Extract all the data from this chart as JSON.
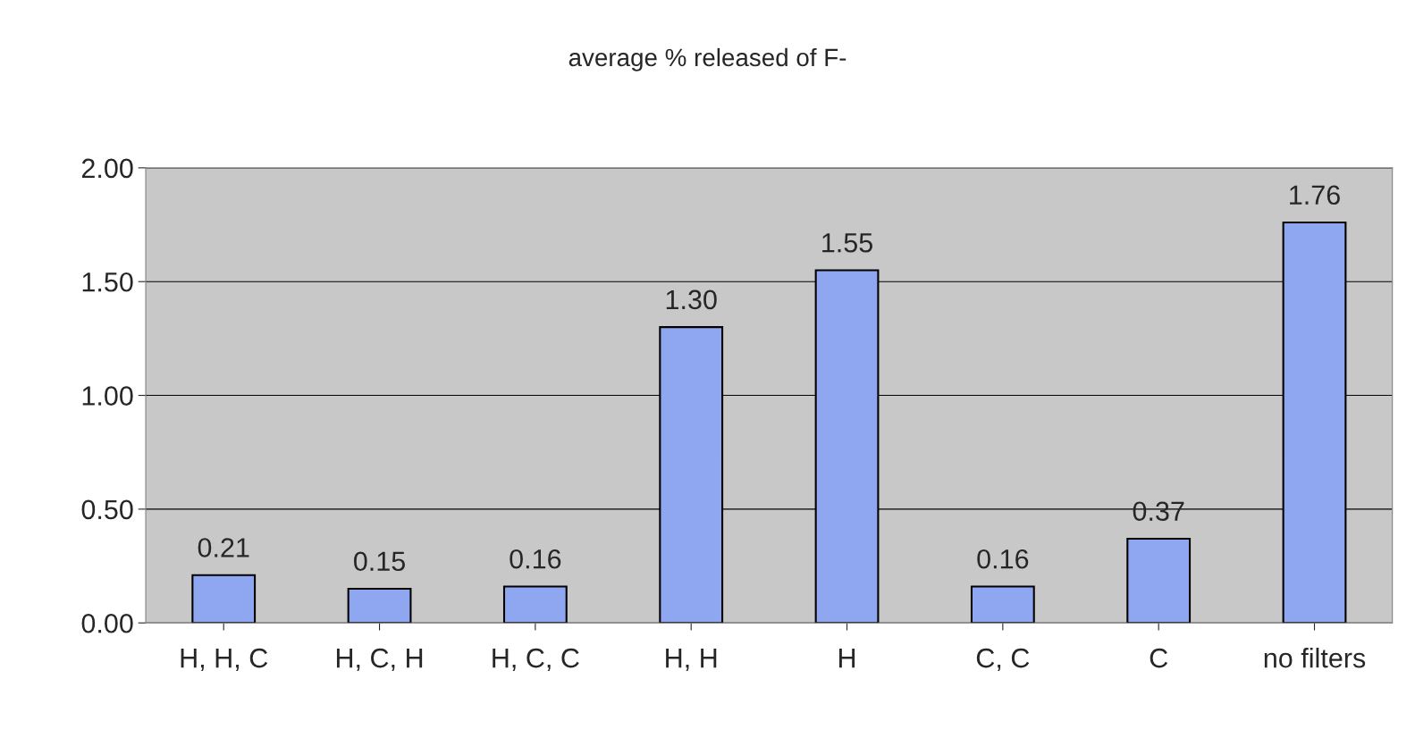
{
  "chart_data": {
    "type": "bar",
    "title": "average % released of F-",
    "categories": [
      "H, H, C",
      "H, C, H",
      "H, C, C",
      "H, H",
      "H",
      "C, C",
      "C",
      "no filters"
    ],
    "values": [
      0.21,
      0.15,
      0.16,
      1.3,
      1.55,
      0.16,
      0.37,
      1.76
    ],
    "value_labels": [
      "0.21",
      "0.15",
      "0.16",
      "1.30",
      "1.55",
      "0.16",
      "0.37",
      "1.76"
    ],
    "color": "#8fa6f0",
    "ylim": [
      0,
      2
    ],
    "yticks": [
      {
        "value": 0,
        "label": "0.00"
      },
      {
        "value": 0.5,
        "label": "0.50"
      },
      {
        "value": 1,
        "label": "1.00"
      },
      {
        "value": 1.5,
        "label": "1.50"
      },
      {
        "value": 2,
        "label": "2.00"
      }
    ],
    "grid": "y"
  }
}
